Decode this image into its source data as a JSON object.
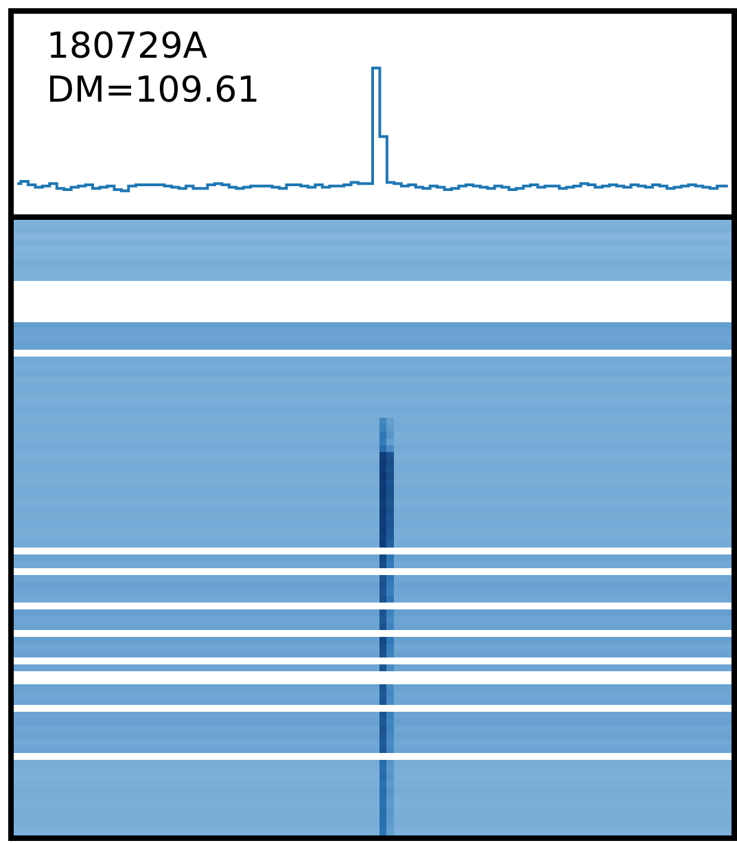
{
  "chart_data": [
    {
      "type": "line",
      "title": "180729A",
      "subtitle": "DM=109.61",
      "color": "#1f77b4",
      "line_style": "steps",
      "tick_labels": false,
      "grid": false,
      "x": [
        0.5,
        1.5,
        2.5,
        3.5,
        4.5,
        5.5,
        6.5,
        7.5,
        8.5,
        9.5,
        10.5,
        11.5,
        12.5,
        13.5,
        14.5,
        15.5,
        16.5,
        17.5,
        18.5,
        19.5,
        20.5,
        21.5,
        22.5,
        23.5,
        24.5,
        25.5,
        26.5,
        27.5,
        28.5,
        29.5,
        30.5,
        31.5,
        32.5,
        33.5,
        34.5,
        35.5,
        36.5,
        37.5,
        38.5,
        39.5,
        40.5,
        41.5,
        42.5,
        43.5,
        44.5,
        45.5,
        46.5,
        47.5,
        48.5,
        49.5,
        50.5,
        51.5,
        52.5,
        53.5,
        54.5,
        55.5,
        56.5,
        57.5,
        58.5,
        59.5,
        60.5,
        61.5,
        62.5,
        63.5,
        64.5,
        65.5,
        66.5,
        67.5,
        68.5,
        69.5,
        70.5,
        71.5,
        72.5,
        73.5,
        74.5,
        75.5,
        76.5,
        77.5,
        78.5,
        79.5,
        80.5,
        81.5,
        82.5,
        83.5,
        84.5,
        85.5,
        86.5,
        87.5,
        88.5,
        89.5,
        90.5,
        91.5,
        92.5,
        93.5,
        94.5,
        95.5,
        96.5,
        97.5,
        98.5,
        99.5
      ],
      "values": [
        0.02,
        0.04,
        0.01,
        -0.01,
        0.0,
        0.02,
        -0.02,
        -0.03,
        -0.01,
        0.0,
        0.01,
        -0.02,
        -0.01,
        0.0,
        -0.03,
        -0.04,
        0.0,
        0.01,
        0.01,
        0.01,
        0.01,
        0.0,
        -0.01,
        -0.02,
        0.0,
        -0.02,
        -0.02,
        0.01,
        0.02,
        0.01,
        -0.01,
        -0.02,
        -0.01,
        0.0,
        0.0,
        0.0,
        -0.01,
        -0.02,
        0.01,
        0.01,
        0.0,
        -0.01,
        0.01,
        -0.01,
        0.0,
        0.0,
        0.01,
        0.03,
        0.02,
        0.02,
        1.0,
        0.42,
        0.03,
        0.02,
        0.0,
        0.01,
        -0.01,
        -0.02,
        0.0,
        -0.01,
        -0.03,
        -0.02,
        0.0,
        0.01,
        0.0,
        -0.01,
        -0.02,
        0.0,
        -0.01,
        -0.03,
        -0.02,
        0.0,
        0.01,
        -0.01,
        0.0,
        0.0,
        -0.02,
        -0.01,
        0.0,
        0.02,
        0.01,
        -0.01,
        0.0,
        0.01,
        0.0,
        -0.01,
        0.01,
        0.0,
        -0.01,
        0.01,
        0.0,
        -0.02,
        -0.01,
        0.0,
        0.01,
        0.0,
        -0.01,
        -0.02,
        0.0,
        0.0
      ],
      "xlim": [
        0,
        100
      ],
      "ylim": [
        -0.24,
        1.46
      ]
    },
    {
      "type": "heatmap",
      "tick_labels": false,
      "grid": false,
      "xlim": [
        0,
        100
      ],
      "ylim": [
        0,
        90
      ],
      "color_range": [
        0,
        1
      ],
      "pulse_bins": [
        51,
        52
      ],
      "levels": [
        0.4,
        0.42,
        0.38,
        0.41,
        0.39,
        0.4,
        0.43,
        0.41,
        0.4,
        null,
        null,
        null,
        null,
        null,
        null,
        0.5,
        0.48,
        0.47,
        0.49,
        null,
        0.44,
        0.43,
        0.45,
        0.42,
        0.44,
        0.43,
        0.42,
        0.44,
        0.43,
        0.43,
        0.44,
        0.42,
        0.43,
        0.44,
        0.42,
        0.43,
        0.44,
        0.43,
        0.42,
        0.44,
        0.43,
        0.42,
        0.44,
        0.43,
        0.44,
        0.42,
        0.43,
        0.44,
        null,
        0.47,
        0.45,
        null,
        0.46,
        0.48,
        0.47,
        0.45,
        null,
        0.5,
        0.47,
        0.48,
        null,
        0.49,
        0.46,
        0.48,
        null,
        0.47,
        null,
        null,
        0.48,
        0.46,
        0.47,
        null,
        0.47,
        0.49,
        0.46,
        0.48,
        0.45,
        0.47,
        null,
        0.43,
        0.42,
        0.41,
        0.42,
        0.43,
        0.42,
        0.41,
        0.42,
        0.43,
        0.42,
        0.41
      ],
      "pulse": [
        null,
        null,
        null,
        null,
        null,
        null,
        null,
        null,
        null,
        null,
        null,
        null,
        null,
        null,
        null,
        null,
        null,
        null,
        null,
        null,
        null,
        null,
        null,
        null,
        null,
        null,
        null,
        null,
        null,
        [
          0.62,
          0.5
        ],
        [
          0.65,
          0.52
        ],
        [
          0.7,
          0.55
        ],
        [
          0.68,
          0.5
        ],
        [
          0.75,
          0.6
        ],
        [
          0.95,
          0.85
        ],
        [
          0.96,
          0.88
        ],
        [
          0.95,
          0.86
        ],
        [
          0.97,
          0.88
        ],
        [
          0.95,
          0.85
        ],
        [
          0.96,
          0.87
        ],
        [
          0.95,
          0.86
        ],
        [
          0.94,
          0.85
        ],
        [
          0.96,
          0.86
        ],
        [
          0.95,
          0.84
        ],
        [
          0.94,
          0.85
        ],
        [
          0.95,
          0.83
        ],
        [
          0.93,
          0.82
        ],
        [
          0.94,
          0.8
        ],
        null,
        [
          0.9,
          0.7
        ],
        [
          0.88,
          0.68
        ],
        null,
        [
          0.85,
          0.7
        ],
        [
          0.87,
          0.68
        ],
        [
          0.84,
          0.66
        ],
        [
          0.86,
          0.7
        ],
        null,
        [
          0.85,
          0.65
        ],
        [
          0.83,
          0.62
        ],
        [
          0.86,
          0.64
        ],
        null,
        [
          0.9,
          0.7
        ],
        [
          0.88,
          0.66
        ],
        [
          0.86,
          0.64
        ],
        null,
        [
          0.85,
          0.6
        ],
        null,
        null,
        [
          0.85,
          0.6
        ],
        [
          0.83,
          0.62
        ],
        [
          0.84,
          0.6
        ],
        null,
        [
          0.85,
          0.65
        ],
        [
          0.83,
          0.63
        ],
        [
          0.86,
          0.64
        ],
        [
          0.84,
          0.62
        ],
        [
          0.82,
          0.6
        ],
        [
          0.84,
          0.62
        ],
        null,
        [
          0.75,
          0.55
        ],
        [
          0.74,
          0.54
        ],
        [
          0.76,
          0.55
        ],
        [
          0.73,
          0.52
        ],
        [
          0.75,
          0.55
        ],
        [
          0.74,
          0.53
        ],
        [
          0.72,
          0.52
        ],
        [
          0.75,
          0.54
        ],
        [
          0.73,
          0.53
        ],
        [
          0.74,
          0.52
        ],
        [
          0.72,
          0.5
        ]
      ]
    }
  ]
}
